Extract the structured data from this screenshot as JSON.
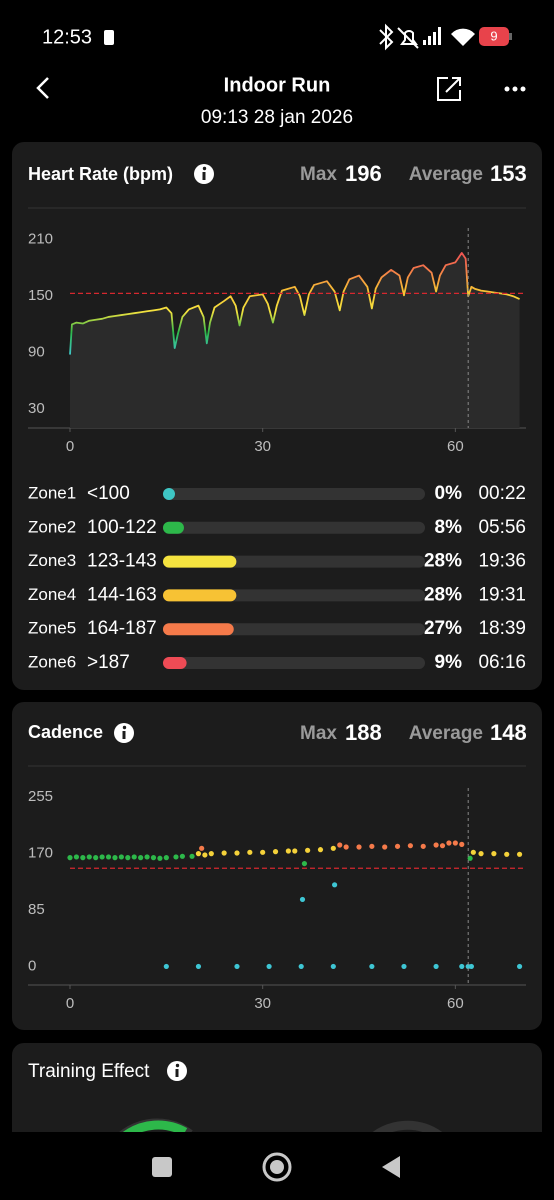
{
  "status_bar": {
    "time": "12:53",
    "battery": "9"
  },
  "header": {
    "title": "Indoor Run",
    "subtitle": "09:13 28 jan 2026"
  },
  "heart_rate": {
    "title": "Heart Rate (bpm)",
    "max_label": "Max",
    "max": 196,
    "average_label": "Average",
    "average": 153,
    "chart": {
      "type": "line",
      "x": [
        0,
        0.3,
        1,
        2,
        3,
        4,
        5,
        6,
        7,
        8,
        9,
        10,
        11,
        12,
        13,
        14,
        15,
        15.8,
        16.3,
        16.8,
        17.5,
        18.5,
        20,
        20.8,
        21.3,
        21.8,
        22.5,
        24,
        25,
        25.8,
        26.4,
        27,
        28,
        30,
        30.8,
        31.6,
        32.2,
        33,
        35,
        35.8,
        36.5,
        37.2,
        38,
        40,
        41.2,
        42,
        42.6,
        43.5,
        45,
        46.3,
        47,
        47.6,
        48.5,
        50,
        51.3,
        52,
        52.6,
        53.5,
        55,
        56.3,
        57,
        57.6,
        58.5,
        60,
        61,
        61.6,
        62,
        62.5,
        63,
        64,
        65,
        66,
        67,
        68,
        69,
        70
      ],
      "values": [
        88,
        120,
        122,
        121,
        124,
        125,
        126,
        128,
        129,
        130,
        131,
        132,
        133,
        134,
        135,
        136,
        138,
        132,
        95,
        110,
        128,
        136,
        140,
        128,
        100,
        122,
        138,
        145,
        150,
        140,
        119,
        138,
        150,
        152,
        142,
        122,
        140,
        156,
        160,
        150,
        130,
        152,
        162,
        166,
        155,
        135,
        155,
        168,
        172,
        160,
        137,
        158,
        170,
        178,
        172,
        151,
        170,
        180,
        183,
        175,
        155,
        172,
        183,
        186,
        196,
        190,
        150,
        160,
        158,
        156,
        155,
        154,
        153,
        152,
        150,
        147
      ],
      "xlim": [
        0,
        71
      ],
      "ylim": [
        10,
        231
      ],
      "xticks": [
        0,
        30,
        60
      ],
      "yticks": [
        30,
        90,
        150,
        210
      ],
      "cursor_x": 62
    },
    "zones": [
      {
        "name": "Zone1",
        "range": "<100",
        "color": "#3ec6c4",
        "percent": 0,
        "percent_label": "0%",
        "time": "00:22"
      },
      {
        "name": "Zone2",
        "range": "100-122",
        "color": "#2db84a",
        "percent": 8,
        "percent_label": "8%",
        "time": "05:56"
      },
      {
        "name": "Zone3",
        "range": "123-143",
        "color": "#f5e33f",
        "percent": 28,
        "percent_label": "28%",
        "time": "19:36"
      },
      {
        "name": "Zone4",
        "range": "144-163",
        "color": "#f7c234",
        "percent": 28,
        "percent_label": "28%",
        "time": "19:31"
      },
      {
        "name": "Zone5",
        "range": "164-187",
        "color": "#f57a4a",
        "percent": 27,
        "percent_label": "27%",
        "time": "18:39"
      },
      {
        "name": "Zone6",
        "range": ">187",
        "color": "#ee4b55",
        "percent": 9,
        "percent_label": "9%",
        "time": "06:16"
      }
    ]
  },
  "cadence": {
    "title": "Cadence",
    "max_label": "Max",
    "max": 188,
    "average_label": "Average",
    "average": 148,
    "chart": {
      "type": "scatter",
      "series": [
        {
          "color": "#2db84a",
          "x": [
            0,
            1,
            2,
            3,
            4,
            5,
            6,
            7,
            8,
            9,
            10,
            11,
            12,
            13,
            14,
            15,
            16.5,
            17.5,
            19,
            36.5,
            62.3
          ],
          "values": [
            164,
            165,
            164,
            165,
            164,
            165,
            165,
            164,
            165,
            164,
            165,
            164,
            165,
            164,
            163,
            164,
            165,
            166,
            166,
            155,
            163
          ]
        },
        {
          "color": "#f5d23a",
          "x": [
            20,
            21,
            22,
            24,
            26,
            28,
            30,
            32,
            34,
            35,
            37,
            39,
            41,
            62.8,
            64,
            66,
            68,
            70
          ],
          "values": [
            170,
            168,
            170,
            171,
            171,
            172,
            172,
            173,
            174,
            174,
            175,
            176,
            178,
            172,
            170,
            170,
            169,
            169
          ]
        },
        {
          "color": "#f57a4a",
          "x": [
            20.5,
            42,
            43,
            45,
            47,
            49,
            51,
            53,
            55,
            57,
            58,
            59,
            60,
            61
          ],
          "values": [
            178,
            183,
            180,
            180,
            181,
            180,
            181,
            182,
            181,
            183,
            182,
            186,
            186,
            184
          ]
        },
        {
          "color": "#3ec6d4",
          "x": [
            15,
            20,
            26,
            31,
            36,
            41,
            47,
            52,
            57,
            61,
            62,
            62.5,
            70,
            36.2,
            41.2
          ],
          "values": [
            0,
            0,
            0,
            0,
            0,
            0,
            0,
            0,
            0,
            0,
            0,
            0,
            0,
            101,
            123
          ]
        }
      ],
      "xlim": [
        0,
        71
      ],
      "ylim": [
        -28,
        281
      ],
      "xticks": [
        0,
        30,
        60
      ],
      "yticks": [
        0,
        85,
        170,
        255
      ],
      "cursor_x": 62
    }
  },
  "training_effect": {
    "title": "Training Effect"
  }
}
